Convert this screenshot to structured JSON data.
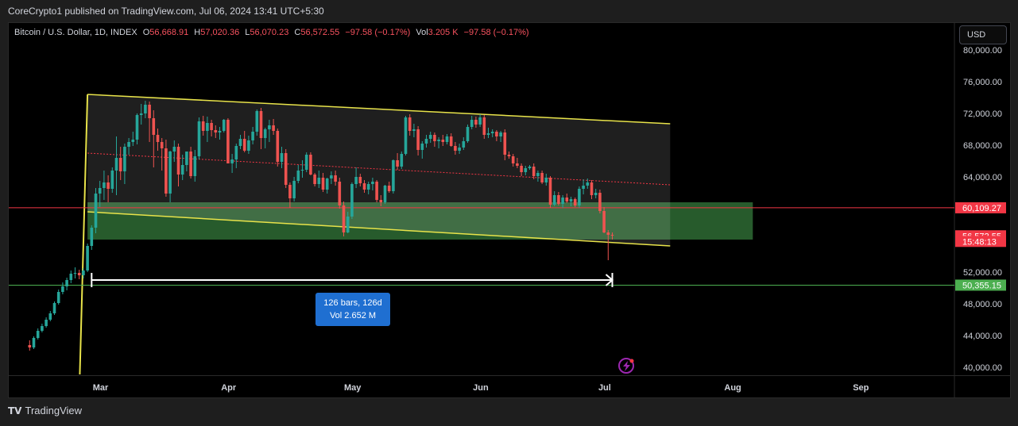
{
  "header": {
    "publish_line": "CoreCrypto1 published on TradingView.com, Jul 06, 2024 13:41 UTC+5:30"
  },
  "legend": {
    "symbol": "Bitcoin / U.S. Dollar, 1D, INDEX",
    "open_label": "O",
    "open": "56,668.91",
    "high_label": "H",
    "high": "57,020.36",
    "low_label": "L",
    "low": "56,070.23",
    "close_label": "C",
    "close": "56,572.55",
    "change": "−97.58 (−0.17%)",
    "vol_label": "Vol",
    "vol": "3.205 K",
    "vol_change": "−97.58 (−0.17%)"
  },
  "currency_button": "USD",
  "price_scale": {
    "ticks": [
      "80,000.00",
      "76,000.00",
      "72,000.00",
      "68,000.00",
      "64,000.00",
      "52,000.00",
      "48,000.00",
      "44,000.00",
      "40,000.00"
    ],
    "tick_values": [
      80000,
      76000,
      72000,
      68000,
      64000,
      52000,
      48000,
      44000,
      40000
    ],
    "labels": [
      {
        "text": "60,109.27",
        "price": 60109.27,
        "color": "#f23645"
      },
      {
        "text": "56,572.55",
        "price": 56572.55,
        "color": "#f23645"
      },
      {
        "text": "15:48:13",
        "price": 55872.0,
        "color": "#f23645"
      },
      {
        "text": "50,355.15",
        "price": 50355.15,
        "color": "#4caf50"
      }
    ]
  },
  "time_scale": {
    "labels": [
      {
        "text": "Mar",
        "day": 0
      },
      {
        "text": "Apr",
        "day": 31
      },
      {
        "text": "May",
        "day": 61
      },
      {
        "text": "Jun",
        "day": 92
      },
      {
        "text": "Jul",
        "day": 122
      },
      {
        "text": "Aug",
        "day": 153
      },
      {
        "text": "Sep",
        "day": 184
      }
    ]
  },
  "measure": {
    "line1": "126 bars, 126d",
    "line2": "Vol 2.652 M"
  },
  "branding": {
    "name": "TradingView",
    "mark": "TV"
  },
  "colors": {
    "up": "#26a69a",
    "down": "#ef5350",
    "channel": "#e8e34a",
    "zone": "#2e6b34",
    "red_line": "#f23645",
    "green_line": "#4caf50"
  },
  "chart_data": {
    "type": "candlestick",
    "title": "Bitcoin / U.S. Dollar, 1D, INDEX",
    "ylim": [
      39500,
      82000
    ],
    "x_unit": "days from Mar 1, 2024",
    "horizontal_lines": [
      60109.27,
      50355.15
    ],
    "zone": {
      "x_start": -2,
      "x_end": 159,
      "price_top": 60800,
      "price_bottom": 56100
    },
    "channel": {
      "upper": [
        [
          -2,
          74400
        ],
        [
          139,
          70700
        ]
      ],
      "lower": [
        [
          -2,
          59600
        ],
        [
          139,
          55300
        ]
      ],
      "mid": [
        [
          -2,
          67000
        ],
        [
          139,
          63000
        ]
      ],
      "left_edge": [
        [
          -4,
          39500
        ],
        [
          -2,
          74400
        ]
      ]
    },
    "measure_range": {
      "x_start": -1,
      "x_end": 125,
      "price": 51000
    },
    "candles": [
      [
        -16,
        42800,
        43400,
        42100,
        42500
      ],
      [
        -15,
        42500,
        43900,
        42300,
        43700
      ],
      [
        -14,
        43700,
        44900,
        43500,
        44600
      ],
      [
        -13,
        44600,
        45500,
        44400,
        45200
      ],
      [
        -12,
        45200,
        46300,
        45000,
        46000
      ],
      [
        -11,
        46000,
        47100,
        45800,
        46800
      ],
      [
        -10,
        46800,
        48300,
        46600,
        48100
      ],
      [
        -9,
        48100,
        49800,
        47900,
        49500
      ],
      [
        -8,
        49500,
        50700,
        49200,
        50200
      ],
      [
        -7,
        50200,
        51300,
        49700,
        51000
      ],
      [
        -6,
        51000,
        52200,
        50600,
        51800
      ],
      [
        -5,
        51800,
        52600,
        51200,
        51900
      ],
      [
        -4,
        51900,
        52300,
        51100,
        51600
      ],
      [
        -3,
        51600,
        52500,
        51200,
        52200
      ],
      [
        -2,
        52200,
        55600,
        52000,
        55300
      ],
      [
        -1,
        55300,
        57900,
        54800,
        57600
      ],
      [
        0,
        57600,
        62600,
        56900,
        61900
      ],
      [
        1,
        61900,
        63500,
        60200,
        62600
      ],
      [
        2,
        62600,
        64800,
        61100,
        63300
      ],
      [
        3,
        63300,
        64200,
        60800,
        62500
      ],
      [
        4,
        62500,
        65200,
        62000,
        64800
      ],
      [
        5,
        64800,
        69100,
        61700,
        66400
      ],
      [
        6,
        66400,
        67800,
        63600,
        64700
      ],
      [
        7,
        64700,
        68200,
        63100,
        67800
      ],
      [
        8,
        67800,
        68900,
        66800,
        68400
      ],
      [
        9,
        68400,
        69700,
        67900,
        68700
      ],
      [
        10,
        68700,
        72000,
        68100,
        71800
      ],
      [
        11,
        71800,
        73200,
        70600,
        72000
      ],
      [
        12,
        72000,
        73600,
        71400,
        73100
      ],
      [
        13,
        73100,
        73500,
        68400,
        71400
      ],
      [
        14,
        71400,
        72400,
        65200,
        69300
      ],
      [
        15,
        69300,
        70100,
        67300,
        68400
      ],
      [
        16,
        68400,
        68900,
        64800,
        67600
      ],
      [
        17,
        67600,
        68700,
        61500,
        61900
      ],
      [
        18,
        61900,
        67300,
        60800,
        67200
      ],
      [
        19,
        67200,
        68600,
        65900,
        67800
      ],
      [
        20,
        67800,
        68200,
        62800,
        64300
      ],
      [
        21,
        64300,
        66800,
        63600,
        65500
      ],
      [
        22,
        65500,
        66900,
        64700,
        67200
      ],
      [
        23,
        67200,
        67800,
        63800,
        64100
      ],
      [
        24,
        64100,
        67400,
        63400,
        66600
      ],
      [
        25,
        66600,
        71500,
        66200,
        71000
      ],
      [
        26,
        71000,
        71700,
        69200,
        69800
      ],
      [
        27,
        69800,
        71600,
        68400,
        70800
      ],
      [
        28,
        70800,
        71200,
        69100,
        69900
      ],
      [
        29,
        69900,
        70500,
        68900,
        69600
      ],
      [
        30,
        69600,
        70300,
        68700,
        69800
      ],
      [
        31,
        69800,
        71300,
        69600,
        71200
      ],
      [
        32,
        71200,
        71400,
        65900,
        65700
      ],
      [
        33,
        65700,
        66900,
        64500,
        66200
      ],
      [
        34,
        66200,
        68200,
        65100,
        67900
      ],
      [
        35,
        67900,
        69300,
        67500,
        68800
      ],
      [
        36,
        68800,
        69800,
        67100,
        67300
      ],
      [
        37,
        67300,
        69200,
        66900,
        68600
      ],
      [
        38,
        68600,
        70300,
        68100,
        69700
      ],
      [
        39,
        69700,
        72500,
        69200,
        72300
      ],
      [
        40,
        72300,
        72700,
        67500,
        68900
      ],
      [
        41,
        68900,
        70200,
        67600,
        70000
      ],
      [
        42,
        70000,
        71200,
        68400,
        70500
      ],
      [
        43,
        70500,
        71300,
        69300,
        69800
      ],
      [
        44,
        69800,
        70100,
        65300,
        65900
      ],
      [
        45,
        65900,
        67800,
        65100,
        67000
      ],
      [
        46,
        67000,
        67500,
        62600,
        63000
      ],
      [
        47,
        63000,
        63300,
        60100,
        61300
      ],
      [
        48,
        61300,
        64000,
        60900,
        63500
      ],
      [
        49,
        63500,
        65500,
        63200,
        64800
      ],
      [
        50,
        64800,
        66100,
        63900,
        64900
      ],
      [
        51,
        64900,
        67100,
        64600,
        66800
      ],
      [
        52,
        66800,
        67100,
        64200,
        64300
      ],
      [
        53,
        64300,
        64500,
        62800,
        63100
      ],
      [
        54,
        63100,
        64800,
        62600,
        63900
      ],
      [
        55,
        63900,
        64500,
        62100,
        62400
      ],
      [
        56,
        62400,
        63900,
        61900,
        63800
      ],
      [
        57,
        63800,
        64700,
        63100,
        64200
      ],
      [
        58,
        64200,
        64800,
        62900,
        63400
      ],
      [
        59,
        63400,
        63900,
        60000,
        60400
      ],
      [
        60,
        60400,
        60900,
        56500,
        57000
      ],
      [
        61,
        57000,
        59600,
        56900,
        59000
      ],
      [
        62,
        59000,
        63300,
        58700,
        63100
      ],
      [
        63,
        63100,
        65200,
        62600,
        64000
      ],
      [
        64,
        64000,
        64400,
        62800,
        63200
      ],
      [
        65,
        63200,
        63600,
        62000,
        62400
      ],
      [
        66,
        62400,
        63400,
        61800,
        63100
      ],
      [
        67,
        63100,
        63900,
        62300,
        63400
      ],
      [
        68,
        63400,
        63600,
        60800,
        61100
      ],
      [
        69,
        61100,
        61700,
        60300,
        60800
      ],
      [
        70,
        60800,
        63000,
        60600,
        62900
      ],
      [
        71,
        62900,
        63400,
        62000,
        62200
      ],
      [
        72,
        62200,
        66200,
        61900,
        66100
      ],
      [
        73,
        66100,
        67000,
        64900,
        65300
      ],
      [
        74,
        65300,
        67200,
        65000,
        66900
      ],
      [
        75,
        66900,
        71700,
        66700,
        71500
      ],
      [
        76,
        71500,
        71900,
        69200,
        69800
      ],
      [
        77,
        69800,
        70700,
        69000,
        70000
      ],
      [
        78,
        70000,
        70400,
        66700,
        67400
      ],
      [
        79,
        67400,
        68500,
        66300,
        68200
      ],
      [
        80,
        68200,
        69300,
        67700,
        68800
      ],
      [
        81,
        68800,
        69700,
        68300,
        69300
      ],
      [
        82,
        69300,
        69600,
        67800,
        68500
      ],
      [
        83,
        68500,
        69000,
        67600,
        68700
      ],
      [
        84,
        68700,
        69300,
        67900,
        68400
      ],
      [
        85,
        68400,
        69400,
        68100,
        69100
      ],
      [
        86,
        69100,
        69500,
        67800,
        67900
      ],
      [
        87,
        67900,
        68400,
        66800,
        67300
      ],
      [
        88,
        67300,
        68200,
        66900,
        67700
      ],
      [
        89,
        67700,
        69000,
        67400,
        68500
      ],
      [
        90,
        68500,
        70600,
        68300,
        70300
      ],
      [
        91,
        70300,
        71700,
        70000,
        71200
      ],
      [
        92,
        71200,
        71600,
        70200,
        70600
      ],
      [
        93,
        70600,
        71900,
        70300,
        71500
      ],
      [
        94,
        71500,
        71800,
        68800,
        69300
      ],
      [
        95,
        69300,
        70200,
        68900,
        69500
      ],
      [
        96,
        69500,
        70000,
        69000,
        69700
      ],
      [
        97,
        69700,
        69900,
        68500,
        69100
      ],
      [
        98,
        69100,
        69800,
        68400,
        69600
      ],
      [
        99,
        69600,
        70000,
        66100,
        66800
      ],
      [
        100,
        66800,
        67200,
        66300,
        66600
      ],
      [
        101,
        66600,
        66900,
        65300,
        65700
      ],
      [
        102,
        65700,
        66400,
        65100,
        65400
      ],
      [
        103,
        65400,
        65700,
        64100,
        64600
      ],
      [
        104,
        64600,
        65400,
        64200,
        65100
      ],
      [
        105,
        65100,
        65500,
        64900,
        65300
      ],
      [
        106,
        65300,
        65700,
        63700,
        64100
      ],
      [
        107,
        64100,
        64800,
        63400,
        64500
      ],
      [
        108,
        64500,
        64800,
        63100,
        63300
      ],
      [
        109,
        63300,
        64400,
        62900,
        63900
      ],
      [
        110,
        63900,
        64100,
        60100,
        60500
      ],
      [
        111,
        60500,
        62200,
        60300,
        61700
      ],
      [
        112,
        61700,
        62100,
        60400,
        60600
      ],
      [
        113,
        60600,
        61700,
        60100,
        61400
      ],
      [
        114,
        61400,
        61900,
        60700,
        60900
      ],
      [
        115,
        60900,
        61500,
        60300,
        61200
      ],
      [
        116,
        61200,
        61400,
        60200,
        60400
      ],
      [
        117,
        60400,
        62800,
        60100,
        62500
      ],
      [
        118,
        62500,
        63700,
        61800,
        62900
      ],
      [
        119,
        62900,
        63800,
        62500,
        63300
      ],
      [
        120,
        63300,
        63600,
        61200,
        61700
      ],
      [
        121,
        61700,
        62500,
        61300,
        62000
      ],
      [
        122,
        62000,
        62400,
        59400,
        59700
      ],
      [
        123,
        59700,
        60200,
        56900,
        57000
      ],
      [
        124,
        57000,
        57300,
        53500,
        56700
      ],
      [
        125,
        56700,
        57000,
        56100,
        56600
      ]
    ]
  }
}
